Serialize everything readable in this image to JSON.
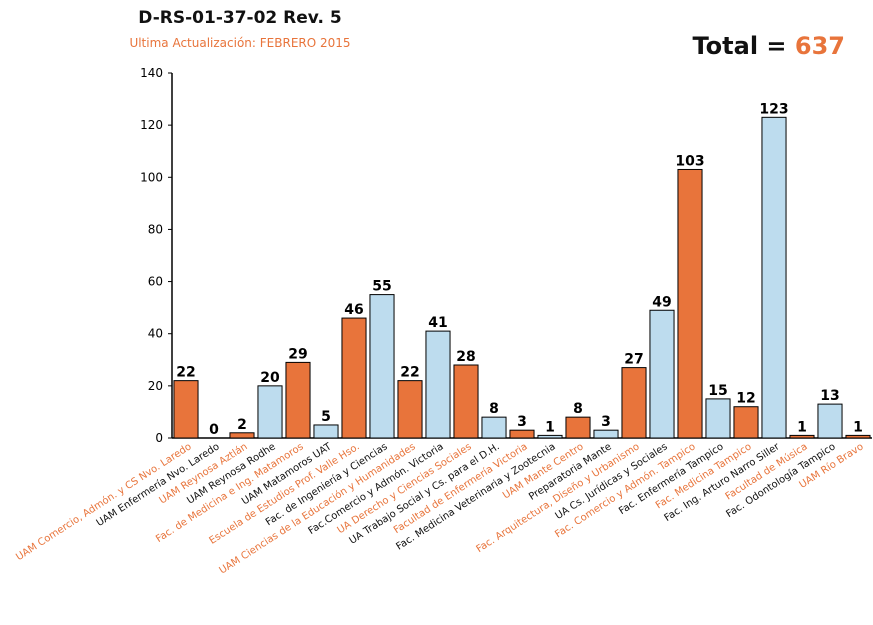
{
  "header": {
    "title": "D-RS-01-37-02 Rev. 5",
    "subtitle": "Ultima Actualización: FEBRERO 2015",
    "total_label": "Total = ",
    "total_value": "637"
  },
  "colors": {
    "orange": "#e8743b",
    "blue": "#bddcee",
    "label_dark": "#111111"
  },
  "chart_data": {
    "type": "bar",
    "title": "D-RS-01-37-02 Rev. 5",
    "subtitle": "Ultima Actualización: FEBRERO 2015",
    "xlabel": "",
    "ylabel": "",
    "ylim": [
      0,
      140
    ],
    "yticks": [
      0,
      20,
      40,
      60,
      80,
      100,
      120,
      140
    ],
    "grid": false,
    "categories": [
      "UAM Comercio, Admón. y CS Nvo. Laredo",
      "UAM Enfermería Nvo. Laredo",
      "UAM Reynosa Aztlán",
      "UAM Reynosa Rodhe",
      "Fac. de Medicina e Ing. Matamoros",
      "UAM Matamoros UAT",
      "Escuela de Estudios Prof. Valle Hso.",
      "Fac. de Ingeniería y Ciencias",
      "UAM Ciencias de la Educación y Humanidades",
      "Fac.Comercio y Admón. Victoria",
      "UA Derecho y Ciencias Sociales",
      "UA Trabajo Social y Cs. para el D.H.",
      "Facultad de Enfermería Victoria",
      "Fac. Medicina Veterinaria y Zootecnia",
      "UAM Mante Centro",
      "Preparatoria Mante",
      "Fac. Arquitectura, Diseño y Urbanismo",
      "UA Cs. Jurídicas y Sociales",
      "Fac. Comercio y Admón. Tampico",
      "Fac. Enfermería Tampico",
      "Fac. Medicina Tampico",
      "Fac. Ing. Arturo Narro Siller",
      "Facultad de Música",
      "Fac. Odontología Tampico",
      "UAM Río Bravo"
    ],
    "values": [
      22,
      0,
      2,
      20,
      29,
      5,
      46,
      55,
      22,
      41,
      28,
      8,
      3,
      1,
      8,
      3,
      27,
      49,
      103,
      15,
      12,
      123,
      1,
      13,
      1
    ],
    "bar_colors": [
      "orange",
      "blue",
      "orange",
      "blue",
      "orange",
      "blue",
      "orange",
      "blue",
      "orange",
      "blue",
      "orange",
      "blue",
      "orange",
      "blue",
      "orange",
      "blue",
      "orange",
      "blue",
      "orange",
      "blue",
      "orange",
      "blue",
      "orange",
      "blue",
      "orange"
    ],
    "label_colors": [
      "orange",
      "dark",
      "orange",
      "dark",
      "orange",
      "dark",
      "orange",
      "dark",
      "orange",
      "dark",
      "orange",
      "dark",
      "orange",
      "dark",
      "orange",
      "dark",
      "orange",
      "dark",
      "orange",
      "dark",
      "orange",
      "dark",
      "orange",
      "dark",
      "orange"
    ]
  }
}
